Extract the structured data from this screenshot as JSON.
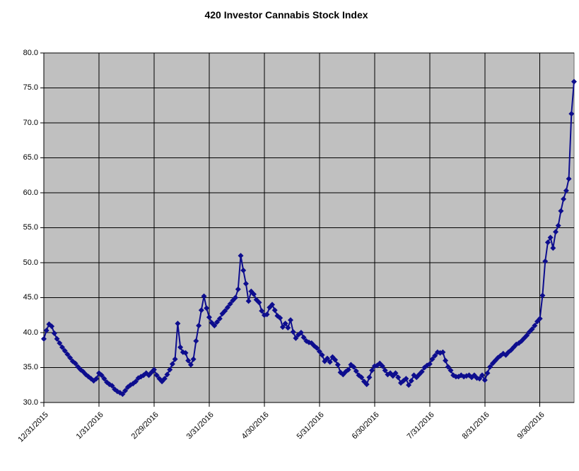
{
  "chart_data": {
    "type": "line",
    "title": "420 Investor Cannabis Stock Index",
    "legend": "none",
    "marker": "diamond",
    "grid": true,
    "plot_bg": "#C0C0C0",
    "colors": {
      "line": "#0D0D8E",
      "marker": "#0D0D8E",
      "grid": "#000000",
      "axis": "#000000",
      "text": "#000000"
    },
    "ylim": [
      30.0,
      80.0
    ],
    "y_ticks": [
      30,
      35,
      40,
      45,
      50,
      55,
      60,
      65,
      70,
      75,
      80
    ],
    "y_tick_labels": [
      "30.0",
      "35.0",
      "40.0",
      "45.0",
      "50.0",
      "55.0",
      "60.0",
      "65.0",
      "70.0",
      "75.0",
      "80.0"
    ],
    "x_tick_labels": [
      "12/31/2015",
      "1/31/2016",
      "2/29/2016",
      "3/31/2016",
      "4/30/2016",
      "5/31/2016",
      "6/30/2016",
      "7/31/2016",
      "8/31/2016",
      "9/30/2016"
    ],
    "x_tick_indices": [
      0,
      21,
      42,
      63,
      84,
      105,
      126,
      147,
      168,
      189
    ],
    "values": [
      39.1,
      40.3,
      41.2,
      40.9,
      39.9,
      39.1,
      38.5,
      37.9,
      37.4,
      36.9,
      36.4,
      35.9,
      35.6,
      35.1,
      34.7,
      34.4,
      34.0,
      33.7,
      33.4,
      33.1,
      33.4,
      34.2,
      33.9,
      33.4,
      32.9,
      32.6,
      32.4,
      31.9,
      31.6,
      31.4,
      31.2,
      31.7,
      32.2,
      32.5,
      32.7,
      33.0,
      33.5,
      33.7,
      33.9,
      34.2,
      33.9,
      34.3,
      34.7,
      33.9,
      33.4,
      33.0,
      33.4,
      34.0,
      34.7,
      35.5,
      36.2,
      41.3,
      37.9,
      37.2,
      37.1,
      36.0,
      35.4,
      36.2,
      38.8,
      41.0,
      43.2,
      45.2,
      43.5,
      42.2,
      41.4,
      41.0,
      41.5,
      42.0,
      42.7,
      43.1,
      43.6,
      44.1,
      44.6,
      45.0,
      46.2,
      51.0,
      48.9,
      47.0,
      44.5,
      45.9,
      45.5,
      44.7,
      44.3,
      43.1,
      42.5,
      42.6,
      43.6,
      44.0,
      43.2,
      42.4,
      42.1,
      40.8,
      41.3,
      40.7,
      41.8,
      40.1,
      39.2,
      39.7,
      40.0,
      39.3,
      38.8,
      38.6,
      38.5,
      38.1,
      37.8,
      37.3,
      36.8,
      35.9,
      36.3,
      35.8,
      36.5,
      36.1,
      35.4,
      34.3,
      34.0,
      34.4,
      34.7,
      35.4,
      35.1,
      34.5,
      33.9,
      33.6,
      33.0,
      32.6,
      33.6,
      34.6,
      35.2,
      35.3,
      35.6,
      35.2,
      34.6,
      34.0,
      34.2,
      33.8,
      34.2,
      33.6,
      32.8,
      33.1,
      33.4,
      32.5,
      33.1,
      33.9,
      33.6,
      34.0,
      34.4,
      35.0,
      35.3,
      35.5,
      36.2,
      36.7,
      37.2,
      37.1,
      37.2,
      36.0,
      35.1,
      34.6,
      33.9,
      33.7,
      33.7,
      33.9,
      33.7,
      33.8,
      33.9,
      33.6,
      33.9,
      33.5,
      33.4,
      33.9,
      33.2,
      34.2,
      35.1,
      35.6,
      36.0,
      36.4,
      36.7,
      37.0,
      36.8,
      37.2,
      37.5,
      37.9,
      38.3,
      38.5,
      38.8,
      39.2,
      39.6,
      40.1,
      40.5,
      41.0,
      41.6,
      42.0,
      45.3,
      50.2,
      52.9,
      53.6,
      52.1,
      54.4,
      55.3,
      57.4,
      59.1,
      60.3,
      62.0,
      71.3,
      75.9
    ]
  }
}
